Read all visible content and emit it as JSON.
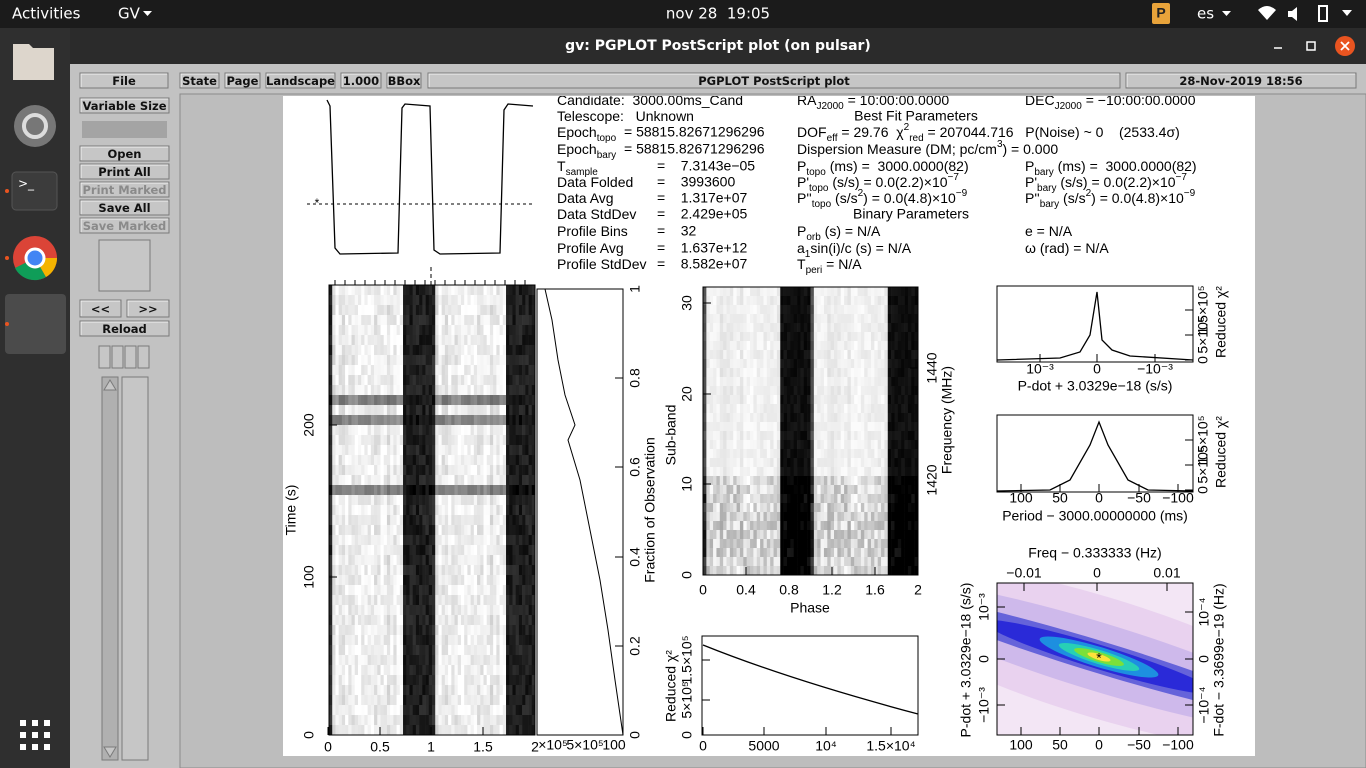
{
  "topbar": {
    "activities": "Activities",
    "app": "GV",
    "clock": "nov 28  19:05",
    "lang": "es"
  },
  "window": {
    "title": "gv: PGPLOT PostScript plot (on pulsar)"
  },
  "toolbar": {
    "file": "File",
    "state": "State",
    "page": "Page",
    "orientation": "Landscape",
    "scale": "1.000",
    "bbox": "BBox",
    "document": "PGPLOT PostScript plot",
    "date": "28-Nov-2019 18:56"
  },
  "sidebar": {
    "size": "Variable Size",
    "open": "Open",
    "print_all": "Print All",
    "print_marked": "Print Marked",
    "save_all": "Save All",
    "save_marked": "Save Marked",
    "prev": "<<",
    "next": ">>",
    "reload": "Reload"
  },
  "plot": {
    "header": {
      "left": [
        {
          "label": [
            {
              "t": "Candidate:  3000.00ms_Cand"
            }
          ]
        },
        {
          "label": [
            {
              "t": "Telescope:   Unknown"
            }
          ]
        },
        {
          "label": [
            {
              "t": "Epoch"
            },
            {
              "sub": "topo"
            }
          ],
          "value": "= 58815.82671296296"
        },
        {
          "label": [
            {
              "t": "Epoch"
            },
            {
              "sub": "bary"
            }
          ],
          "value": "= 58815.82671296296"
        },
        {
          "label": [
            {
              "t": "T"
            },
            {
              "sub": "sample"
            }
          ],
          "value": "=    7.3143e−05"
        },
        {
          "label": [
            {
              "t": "Data Folded"
            }
          ],
          "value": "=    3993600"
        },
        {
          "label": [
            {
              "t": "Data Avg"
            }
          ],
          "value": "=    1.317e+07"
        },
        {
          "label": [
            {
              "t": "Data StdDev"
            }
          ],
          "value": "=    2.429e+05"
        },
        {
          "label": [
            {
              "t": "Profile Bins"
            }
          ],
          "value": "=    32"
        },
        {
          "label": [
            {
              "t": "Profile Avg"
            }
          ],
          "value": "=    1.637e+12"
        },
        {
          "label": [
            {
              "t": "Profile StdDev"
            }
          ],
          "value": "=    8.582e+07"
        }
      ],
      "best_fit": "Best Fit Parameters",
      "binary": "Binary Parameters",
      "middle": [
        [
          {
            "t": "RA"
          },
          {
            "sub": "J2000"
          },
          {
            "t": " = 10:00:00.0000"
          }
        ],
        [
          {
            "t": "DOF"
          },
          {
            "sub": "eff"
          },
          {
            "t": " = 29.76  χ"
          },
          {
            "sup": "2"
          },
          {
            "sub": "red"
          },
          {
            "t": " = 207044.716   P(Noise) ~ 0    (2533.4σ)"
          }
        ],
        [
          {
            "t": "Dispersion Measure (DM; pc/cm"
          },
          {
            "sup": "3"
          },
          {
            "t": ") = 0.000"
          }
        ],
        [
          {
            "t": "P"
          },
          {
            "sub": "topo"
          },
          {
            "t": " (ms) =  3000.0000(82)"
          }
        ],
        [
          {
            "t": "P'"
          },
          {
            "sub": "topo"
          },
          {
            "t": " (s/s) = 0.0(2.2)×10"
          },
          {
            "sup": "−7"
          }
        ],
        [
          {
            "t": "P''"
          },
          {
            "sub": "topo"
          },
          {
            "t": " (s/s"
          },
          {
            "sup": "2"
          },
          {
            "t": ") = 0.0(4.8)×10"
          },
          {
            "sup": "−9"
          }
        ],
        [
          {
            "t": "P"
          },
          {
            "sub": "orb"
          },
          {
            "t": " (s) = N/A"
          }
        ],
        [
          {
            "t": "a"
          },
          {
            "sub": "1"
          },
          {
            "t": "sin(i)/c (s) = N/A"
          }
        ],
        [
          {
            "t": "T"
          },
          {
            "sub": "peri"
          },
          {
            "t": " = N/A"
          }
        ]
      ],
      "right": [
        [
          {
            "t": "DEC"
          },
          {
            "sub": "J2000"
          },
          {
            "t": " = −10:00:00.0000"
          }
        ],
        [
          {
            "t": "P"
          },
          {
            "sub": "bary"
          },
          {
            "t": " (ms) =  3000.0000(82)"
          }
        ],
        [
          {
            "t": "P'"
          },
          {
            "sub": "bary"
          },
          {
            "t": " (s/s) = 0.0(2.2)×10"
          },
          {
            "sup": "−7"
          }
        ],
        [
          {
            "t": "P''"
          },
          {
            "sub": "bary"
          },
          {
            "t": " (s/s"
          },
          {
            "sup": "2"
          },
          {
            "t": ") = 0.0(4.8)×10"
          },
          {
            "sup": "−9"
          }
        ],
        [
          {
            "t": "e = N/A"
          }
        ],
        [
          {
            "t": "ω (rad) = N/A"
          }
        ]
      ]
    },
    "time_phase": {
      "ylabel": "Time (s)",
      "yticks": [
        "0",
        "100",
        "200"
      ],
      "xticks": [
        "0",
        "0.5",
        "1",
        "1.5",
        "2"
      ],
      "side_xticks": [
        "×10⁵",
        "5×10⁵",
        "100"
      ],
      "y2label": "Fraction of Observation",
      "y2ticks": [
        "0",
        "0.2",
        "0.4",
        "0.6",
        "0.8",
        "1"
      ]
    },
    "subbands": {
      "ylabel": "Sub-band",
      "yticks": [
        "0",
        "10",
        "20",
        "30"
      ],
      "xlabel": "Phase",
      "xticks": [
        "0",
        "0.4",
        "0.8",
        "1.2",
        "1.6",
        "2"
      ],
      "y2label": "Frequency (MHz)",
      "y2ticks": [
        "1420",
        "1440"
      ]
    },
    "chi_time": {
      "ylabel": "Reduced χ²",
      "yticks": [
        "0",
        "5×10⁵",
        "1.5×10⁵"
      ],
      "xticks": [
        "0",
        "5000",
        "10⁴",
        "1.5×10⁴"
      ]
    },
    "pdot": {
      "xlabel": "P-dot + 3.0329e−18 (s/s)",
      "xticks": [
        "10⁻³",
        "0",
        "−10⁻³"
      ],
      "y2label": "Reduced χ²",
      "y2ticks": [
        "0",
        "5×10⁵",
        "1.5×10⁵"
      ]
    },
    "period": {
      "xlabel": "Period − 3000.00000000 (ms)",
      "xticks": [
        "100",
        "50",
        "0",
        "−50",
        "−100"
      ],
      "y2label": "Reduced χ²",
      "y2ticks": [
        "0",
        "5×10⁵",
        "1.5×10⁵"
      ]
    },
    "ppdot": {
      "x2label": "Freq − 0.333333 (Hz)",
      "x2ticks": [
        "−0.01",
        "0",
        "0.01"
      ],
      "xticks": [
        "100",
        "50",
        "0",
        "−50",
        "−100"
      ],
      "ylabel": "P-dot + 3.0329e−18 (s/s)",
      "yticks": [
        "10⁻³",
        "0",
        "−10⁻³"
      ],
      "y2label": "F-dot − 3.3699e−19 (Hz)",
      "y2ticks": [
        "10⁻⁴",
        "0",
        "−10⁻⁴"
      ]
    }
  }
}
